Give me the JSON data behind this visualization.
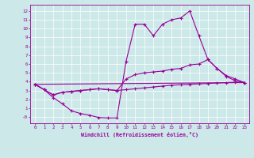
{
  "xlabel": "Windchill (Refroidissement éolien,°C)",
  "background_color": "#cce8e8",
  "grid_color": "#aacccc",
  "line_color": "#990099",
  "xlim": [
    -0.5,
    23.5
  ],
  "ylim": [
    -0.7,
    12.7
  ],
  "xticks": [
    0,
    1,
    2,
    3,
    4,
    5,
    6,
    7,
    8,
    9,
    10,
    11,
    12,
    13,
    14,
    15,
    16,
    17,
    18,
    19,
    20,
    21,
    22,
    23
  ],
  "yticks": [
    0,
    1,
    2,
    3,
    4,
    5,
    6,
    7,
    8,
    9,
    10,
    11,
    12
  ],
  "series": [
    {
      "x": [
        0,
        1,
        2,
        3,
        4,
        5,
        6,
        7,
        8,
        9,
        10,
        11,
        12,
        13,
        14,
        15,
        16,
        17,
        18,
        19,
        20,
        21,
        22,
        23
      ],
      "y": [
        3.7,
        3.1,
        2.2,
        1.5,
        0.7,
        0.4,
        0.2,
        -0.05,
        -0.1,
        -0.1,
        6.3,
        10.5,
        10.5,
        9.2,
        10.5,
        11.0,
        11.2,
        12.0,
        9.2,
        6.5,
        5.5,
        4.6,
        4.1,
        3.9
      ]
    },
    {
      "x": [
        0,
        1,
        2,
        3,
        4,
        5,
        6,
        7,
        8,
        9,
        10,
        11,
        12,
        13,
        14,
        15,
        16,
        17,
        18,
        19,
        20,
        21,
        22,
        23
      ],
      "y": [
        3.7,
        3.1,
        2.5,
        2.8,
        2.9,
        3.0,
        3.1,
        3.2,
        3.1,
        3.0,
        4.3,
        4.8,
        5.0,
        5.1,
        5.2,
        5.4,
        5.5,
        5.9,
        6.0,
        6.5,
        5.5,
        4.7,
        4.3,
        3.9
      ]
    },
    {
      "x": [
        0,
        23
      ],
      "y": [
        3.7,
        3.9
      ]
    },
    {
      "x": [
        0,
        1,
        2,
        3,
        4,
        5,
        6,
        7,
        8,
        9,
        10,
        11,
        12,
        13,
        14,
        15,
        16,
        17,
        18,
        19,
        20,
        21,
        22,
        23
      ],
      "y": [
        3.7,
        3.1,
        2.5,
        2.8,
        2.9,
        3.0,
        3.1,
        3.2,
        3.1,
        3.0,
        3.1,
        3.2,
        3.3,
        3.4,
        3.5,
        3.6,
        3.65,
        3.7,
        3.75,
        3.8,
        3.85,
        3.9,
        3.95,
        3.9
      ]
    }
  ]
}
